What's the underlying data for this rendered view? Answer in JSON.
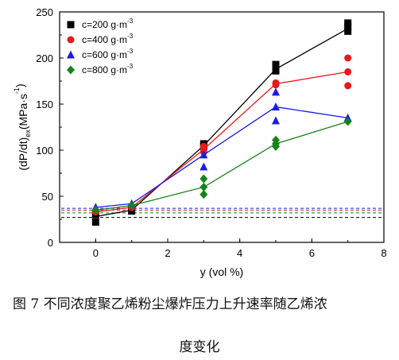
{
  "chart_data": {
    "type": "scatter",
    "xlabel": "y (vol %)",
    "ylabel_main": "(dP/dt)",
    "ylabel_sub": "ex",
    "ylabel_unit": "(MPa·s",
    "ylabel_unit_sup": "-1",
    "ylabel_unit_end": ")",
    "xlim": [
      -1,
      8
    ],
    "ylim": [
      0,
      250
    ],
    "xticks": [
      0,
      2,
      4,
      6,
      8
    ],
    "yticks": [
      0,
      50,
      100,
      150,
      200,
      250
    ],
    "grid": false,
    "legend_position": "top-left",
    "series": [
      {
        "name_prefix": "c=200 g·m",
        "name_sup": "-3",
        "color": "#000000",
        "marker": "square",
        "line": [
          [
            0,
            28
          ],
          [
            1,
            35
          ],
          [
            3,
            105
          ],
          [
            5,
            188
          ],
          [
            7,
            232
          ]
        ],
        "points": [
          [
            0,
            22
          ],
          [
            0,
            30
          ],
          [
            1,
            34
          ],
          [
            1,
            37
          ],
          [
            3,
            104
          ],
          [
            3,
            107
          ],
          [
            5,
            186
          ],
          [
            5,
            190
          ],
          [
            5,
            193
          ],
          [
            7,
            229
          ],
          [
            7,
            234
          ],
          [
            7,
            238
          ]
        ],
        "baseline": 27
      },
      {
        "name_prefix": "c=400 g·m",
        "name_sup": "-3",
        "color": "#e8191b",
        "marker": "circle",
        "line": [
          [
            0,
            33
          ],
          [
            1,
            38
          ],
          [
            3,
            101
          ],
          [
            5,
            172
          ],
          [
            7,
            185
          ]
        ],
        "points": [
          [
            0,
            33
          ],
          [
            1,
            38
          ],
          [
            3,
            98
          ],
          [
            3,
            101
          ],
          [
            3,
            104
          ],
          [
            5,
            171
          ],
          [
            5,
            173
          ],
          [
            7,
            170
          ],
          [
            7,
            185
          ],
          [
            7,
            200
          ]
        ],
        "baseline": 35
      },
      {
        "name_prefix": "c=600 g·m",
        "name_sup": "-3",
        "color": "#1a1aee",
        "marker": "triangle",
        "line": [
          [
            0,
            38
          ],
          [
            1,
            42
          ],
          [
            3,
            95
          ],
          [
            5,
            147
          ],
          [
            7,
            135
          ]
        ],
        "points": [
          [
            0,
            38
          ],
          [
            1,
            42
          ],
          [
            3,
            82
          ],
          [
            3,
            95
          ],
          [
            5,
            132
          ],
          [
            5,
            147
          ],
          [
            5,
            163
          ],
          [
            7,
            135
          ]
        ],
        "baseline": 37
      },
      {
        "name_prefix": "c=800 g·m",
        "name_sup": "-3",
        "color": "#16821a",
        "marker": "diamond",
        "line": [
          [
            0,
            35
          ],
          [
            1,
            40
          ],
          [
            3,
            60
          ],
          [
            5,
            107
          ],
          [
            7,
            131
          ]
        ],
        "points": [
          [
            0,
            35
          ],
          [
            1,
            40
          ],
          [
            3,
            52
          ],
          [
            3,
            60
          ],
          [
            3,
            69
          ],
          [
            5,
            104
          ],
          [
            5,
            107
          ],
          [
            5,
            111
          ],
          [
            7,
            131
          ]
        ],
        "baseline": 32
      }
    ]
  },
  "caption": {
    "line1": "图 7  不同浓度聚乙烯粉尘爆炸压力上升速率随乙烯浓",
    "line2": "度变化"
  }
}
